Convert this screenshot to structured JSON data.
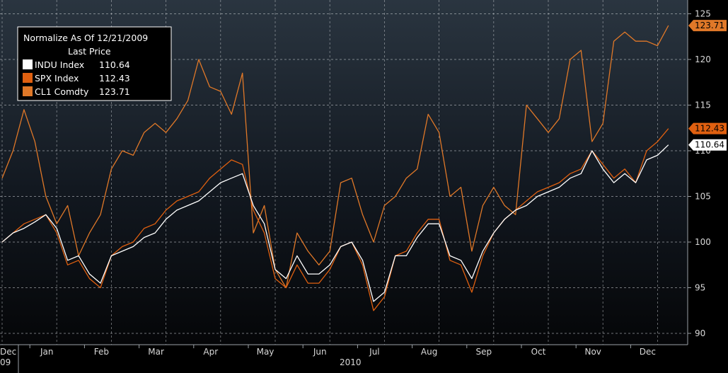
{
  "chart_data": {
    "type": "line",
    "legend": {
      "title_line1": "Normalize As Of 12/21/2009",
      "title_line2": "Last Price",
      "placement": "top-left"
    },
    "x_axis": {
      "start_label": "Dec",
      "start_sub": "09",
      "months": [
        "Jan",
        "Feb",
        "Mar",
        "Apr",
        "May",
        "Jun",
        "Jul",
        "Aug",
        "Sep",
        "Oct",
        "Nov",
        "Dec"
      ],
      "year_label": "2010"
    },
    "ylim": [
      89,
      126
    ],
    "yticks": [
      "90",
      "95",
      "100",
      "105",
      "110",
      "115",
      "120",
      "125"
    ],
    "grid": true,
    "series": [
      {
        "name": "INDU Index",
        "last": "110.64",
        "last_value": 110.64,
        "color": "#ffffff",
        "badge_bg": "#ffffff",
        "badge_fg": "#000000",
        "x": [
          0,
          0.2,
          0.4,
          0.6,
          0.8,
          1.0,
          1.2,
          1.4,
          1.6,
          1.8,
          2.0,
          2.2,
          2.4,
          2.6,
          2.8,
          3.0,
          3.2,
          3.4,
          3.6,
          3.8,
          4.0,
          4.2,
          4.4,
          4.6,
          4.8,
          5.0,
          5.2,
          5.4,
          5.6,
          5.8,
          6.0,
          6.2,
          6.4,
          6.6,
          6.8,
          7.0,
          7.2,
          7.4,
          7.6,
          7.8,
          8.0,
          8.2,
          8.4,
          8.6,
          8.8,
          9.0,
          9.2,
          9.4,
          9.6,
          9.8,
          10.0,
          10.2,
          10.4,
          10.6,
          10.8,
          11.0,
          11.2,
          11.4,
          11.6,
          11.8,
          12.0,
          12.2
        ],
        "values": [
          100,
          101,
          101.5,
          102.2,
          103,
          101.5,
          98,
          98.5,
          96.5,
          95.5,
          98.5,
          99,
          99.5,
          100.5,
          101,
          102.5,
          103.5,
          104,
          104.5,
          105.5,
          106.5,
          107,
          107.5,
          104,
          102,
          97,
          96,
          98.5,
          96.5,
          96.5,
          97.5,
          99.5,
          100,
          98,
          93.5,
          94.5,
          98.5,
          98.5,
          100.5,
          102,
          102,
          98.5,
          98,
          96,
          99,
          101,
          102.5,
          103.5,
          104,
          105,
          105.5,
          106,
          107,
          107.5,
          110,
          108,
          106.5,
          107.5,
          106.5,
          109,
          109.5,
          110.64
        ]
      },
      {
        "name": "SPX Index",
        "last": "112.43",
        "last_value": 112.43,
        "color": "#e06010",
        "badge_bg": "#e06010",
        "badge_fg": "#000000",
        "x": [
          0,
          0.2,
          0.4,
          0.6,
          0.8,
          1.0,
          1.2,
          1.4,
          1.6,
          1.8,
          2.0,
          2.2,
          2.4,
          2.6,
          2.8,
          3.0,
          3.2,
          3.4,
          3.6,
          3.8,
          4.0,
          4.2,
          4.4,
          4.6,
          4.8,
          5.0,
          5.2,
          5.4,
          5.6,
          5.8,
          6.0,
          6.2,
          6.4,
          6.6,
          6.8,
          7.0,
          7.2,
          7.4,
          7.6,
          7.8,
          8.0,
          8.2,
          8.4,
          8.6,
          8.8,
          9.0,
          9.2,
          9.4,
          9.6,
          9.8,
          10.0,
          10.2,
          10.4,
          10.6,
          10.8,
          11.0,
          11.2,
          11.4,
          11.6,
          11.8,
          12.0,
          12.2
        ],
        "values": [
          100,
          101,
          102,
          102.5,
          103,
          101,
          97.5,
          98,
          96,
          95,
          98.5,
          99.5,
          100,
          101.5,
          102,
          103.5,
          104.5,
          105,
          105.5,
          107,
          108,
          109,
          108.5,
          103.5,
          101,
          96,
          95,
          97.5,
          95.5,
          95.5,
          97,
          99.5,
          100,
          97.5,
          92.5,
          94,
          98.5,
          99,
          101,
          102.5,
          102.5,
          98,
          97.5,
          94.5,
          98.5,
          101,
          102.5,
          103.5,
          104.5,
          105.5,
          106,
          106.5,
          107.5,
          108,
          110,
          108.5,
          107,
          108,
          106.5,
          110,
          111,
          112.43
        ]
      },
      {
        "name": "CL1 Comdty",
        "last": "123.71",
        "last_value": 123.71,
        "color": "#e07828",
        "badge_bg": "#e07828",
        "badge_fg": "#000000",
        "x": [
          0,
          0.2,
          0.4,
          0.6,
          0.8,
          1.0,
          1.2,
          1.4,
          1.6,
          1.8,
          2.0,
          2.2,
          2.4,
          2.6,
          2.8,
          3.0,
          3.2,
          3.4,
          3.6,
          3.8,
          4.0,
          4.2,
          4.4,
          4.6,
          4.8,
          5.0,
          5.2,
          5.4,
          5.6,
          5.8,
          6.0,
          6.2,
          6.4,
          6.6,
          6.8,
          7.0,
          7.2,
          7.4,
          7.6,
          7.8,
          8.0,
          8.2,
          8.4,
          8.6,
          8.8,
          9.0,
          9.2,
          9.4,
          9.6,
          9.8,
          10.0,
          10.2,
          10.4,
          10.6,
          10.8,
          11.0,
          11.2,
          11.4,
          11.6,
          11.8,
          12.0,
          12.2
        ],
        "values": [
          107,
          110,
          114.5,
          111,
          105,
          102,
          104,
          98.5,
          101,
          103,
          108,
          110,
          109.5,
          112,
          113,
          112,
          113.5,
          115.5,
          120,
          117,
          116.5,
          114,
          118.5,
          101,
          104,
          97,
          95,
          101,
          99,
          97.5,
          99,
          106.5,
          107,
          103,
          100,
          104,
          105,
          107,
          108,
          114,
          112,
          105,
          106,
          99,
          104,
          106,
          104,
          103,
          115,
          113.5,
          112,
          113.5,
          120,
          121,
          111,
          113,
          122,
          123,
          122,
          122,
          121.5,
          123.71
        ]
      }
    ]
  }
}
